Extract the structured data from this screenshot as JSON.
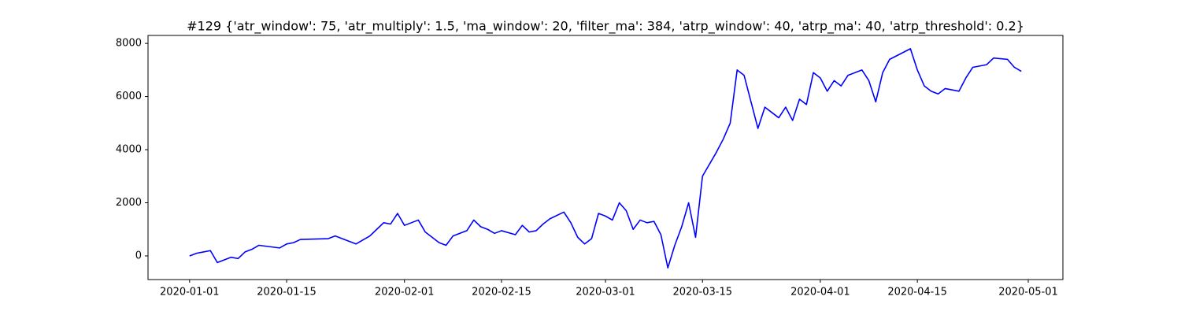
{
  "chart_data": {
    "type": "line",
    "title": "#129 {'atr_window': 75, 'atr_multiply': 1.5, 'ma_window': 20, 'filter_ma': 384, 'atrp_window': 40, 'atrp_ma': 40, 'atrp_threshold': 0.2}",
    "x": [
      "2020-01-01",
      "2020-01-02",
      "2020-01-03",
      "2020-01-04",
      "2020-01-05",
      "2020-01-07",
      "2020-01-08",
      "2020-01-09",
      "2020-01-10",
      "2020-01-11",
      "2020-01-14",
      "2020-01-15",
      "2020-01-16",
      "2020-01-17",
      "2020-01-21",
      "2020-01-22",
      "2020-01-23",
      "2020-01-24",
      "2020-01-25",
      "2020-01-27",
      "2020-01-28",
      "2020-01-29",
      "2020-01-30",
      "2020-01-31",
      "2020-02-01",
      "2020-02-03",
      "2020-02-04",
      "2020-02-05",
      "2020-02-06",
      "2020-02-07",
      "2020-02-08",
      "2020-02-10",
      "2020-02-11",
      "2020-02-12",
      "2020-02-13",
      "2020-02-14",
      "2020-02-15",
      "2020-02-17",
      "2020-02-18",
      "2020-02-19",
      "2020-02-20",
      "2020-02-21",
      "2020-02-22",
      "2020-02-24",
      "2020-02-25",
      "2020-02-26",
      "2020-02-27",
      "2020-02-28",
      "2020-02-29",
      "2020-03-01",
      "2020-03-02",
      "2020-03-03",
      "2020-03-04",
      "2020-03-05",
      "2020-03-06",
      "2020-03-07",
      "2020-03-08",
      "2020-03-09",
      "2020-03-10",
      "2020-03-11",
      "2020-03-12",
      "2020-03-13",
      "2020-03-14",
      "2020-03-15",
      "2020-03-17",
      "2020-03-18",
      "2020-03-19",
      "2020-03-20",
      "2020-03-21",
      "2020-03-22",
      "2020-03-23",
      "2020-03-24",
      "2020-03-25",
      "2020-03-26",
      "2020-03-27",
      "2020-03-28",
      "2020-03-29",
      "2020-03-30",
      "2020-03-31",
      "2020-04-01",
      "2020-04-02",
      "2020-04-03",
      "2020-04-04",
      "2020-04-05",
      "2020-04-07",
      "2020-04-08",
      "2020-04-09",
      "2020-04-10",
      "2020-04-11",
      "2020-04-14",
      "2020-04-15",
      "2020-04-16",
      "2020-04-17",
      "2020-04-18",
      "2020-04-19",
      "2020-04-21",
      "2020-04-22",
      "2020-04-23",
      "2020-04-25",
      "2020-04-26",
      "2020-04-28",
      "2020-04-29",
      "2020-04-30"
    ],
    "series": [
      {
        "color": "#0000ff",
        "values": [
          0,
          100,
          150,
          200,
          -250,
          -50,
          -100,
          150,
          250,
          400,
          300,
          450,
          500,
          620,
          650,
          750,
          650,
          550,
          450,
          750,
          1000,
          1250,
          1200,
          1600,
          1150,
          1350,
          900,
          700,
          500,
          400,
          750,
          950,
          1350,
          1100,
          1000,
          850,
          950,
          800,
          1150,
          900,
          950,
          1200,
          1400,
          1650,
          1250,
          700,
          450,
          650,
          1600,
          1500,
          1350,
          2000,
          1700,
          1000,
          1350,
          1250,
          1300,
          800,
          -450,
          400,
          1100,
          2000,
          700,
          3000,
          3900,
          4400,
          5000,
          7000,
          6800,
          5800,
          4800,
          5600,
          5400,
          5200,
          5600,
          5100,
          5900,
          5700,
          6900,
          6700,
          6200,
          6600,
          6400,
          6800,
          7000,
          6600,
          5800,
          6900,
          7400,
          7800,
          7000,
          6400,
          6200,
          6100,
          6300,
          6200,
          6700,
          7100,
          7200,
          7450,
          7400,
          7100,
          6950
        ]
      }
    ],
    "xlim": [
      "2019-12-26",
      "2020-05-06"
    ],
    "xticks": [
      "2020-01-01",
      "2020-01-15",
      "2020-02-01",
      "2020-02-15",
      "2020-03-01",
      "2020-03-15",
      "2020-04-01",
      "2020-04-15",
      "2020-05-01"
    ],
    "ylim": [
      -890,
      8300
    ],
    "yticks": [
      0,
      2000,
      4000,
      6000,
      8000
    ]
  }
}
